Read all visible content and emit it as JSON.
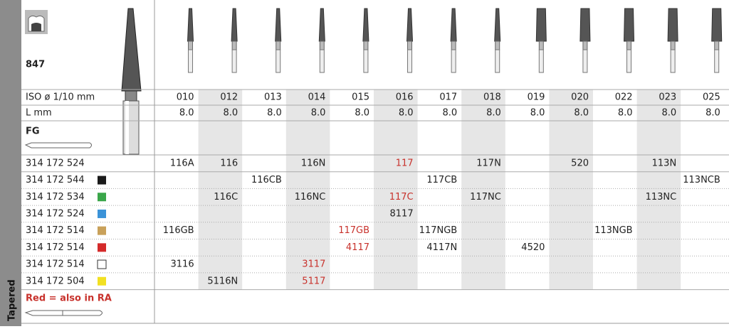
{
  "shape": "847",
  "columns": [
    "010",
    "012",
    "013",
    "014",
    "015",
    "016",
    "017",
    "018",
    "019",
    "020",
    "022",
    "023",
    "025"
  ],
  "iso_label": "ISO ø 1/10 mm",
  "length_label": "L mm",
  "lengths": [
    "8.0",
    "8.0",
    "8.0",
    "8.0",
    "8.0",
    "8.0",
    "8.0",
    "8.0",
    "8.0",
    "8.0",
    "8.0",
    "8.0",
    "8.0"
  ],
  "shank": "FG",
  "rows": [
    {
      "code": "314 172 524",
      "swatch": null,
      "cells": [
        "116A",
        "116",
        null,
        "116N",
        null,
        {
          "text": "117",
          "color": "#c8322c"
        },
        null,
        "117N",
        null,
        "520",
        null,
        "113N",
        null
      ]
    },
    {
      "code": "314 172 544",
      "swatch": "#1a1a1a",
      "cells": [
        null,
        null,
        "116CB",
        null,
        null,
        null,
        "117CB",
        null,
        null,
        null,
        null,
        null,
        "113NCB"
      ]
    },
    {
      "code": "314 172 534",
      "swatch": "#3aa64a",
      "cells": [
        null,
        "116C",
        null,
        "116NC",
        null,
        {
          "text": "117C",
          "color": "#c8322c"
        },
        null,
        "117NC",
        null,
        null,
        null,
        "113NC",
        null
      ]
    },
    {
      "code": "314 172 524",
      "swatch": "#3b93d8",
      "cells": [
        null,
        null,
        null,
        null,
        null,
        "8117",
        null,
        null,
        null,
        null,
        null,
        null,
        null
      ]
    },
    {
      "code": "314 172 514",
      "swatch": "#c9a15a",
      "cells": [
        "116GB",
        null,
        null,
        null,
        {
          "text": "117GB",
          "color": "#c8322c"
        },
        null,
        "117NGB",
        null,
        null,
        null,
        "113NGB",
        null,
        null
      ]
    },
    {
      "code": "314 172 514",
      "swatch": "#d42a2a",
      "cells": [
        null,
        null,
        null,
        null,
        {
          "text": "4117",
          "color": "#c8322c"
        },
        null,
        "4117N",
        null,
        "4520",
        null,
        null,
        null,
        null
      ]
    },
    {
      "code": "314 172 514",
      "swatch": "#ffffff",
      "cells": [
        "3116",
        null,
        null,
        {
          "text": "3117",
          "color": "#c8322c"
        },
        null,
        null,
        null,
        null,
        null,
        null,
        null,
        null,
        null
      ]
    },
    {
      "code": "314 172 504",
      "swatch": "#f2e022",
      "cells": [
        null,
        "5116N",
        null,
        {
          "text": "5117",
          "color": "#c8322c"
        },
        null,
        null,
        null,
        null,
        null,
        null,
        null,
        null,
        null
      ]
    }
  ],
  "note": "Red = also in RA",
  "note_color": "#c8322c",
  "category": "Tapered"
}
